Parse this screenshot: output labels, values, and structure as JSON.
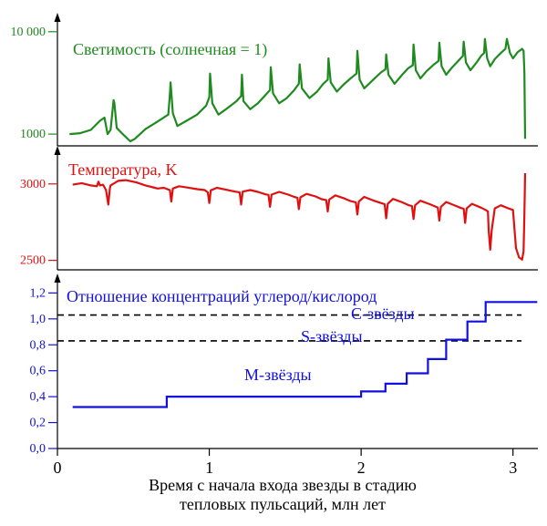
{
  "colors": {
    "luminosity": "#1f8a1f",
    "temperature": "#e01010",
    "ratio": "#1010e0",
    "axis": "#000000"
  },
  "chart_data": [
    {
      "type": "line",
      "title": "Светимость (солнечная = 1)",
      "yscale": "log",
      "ylim": [
        800,
        13000
      ],
      "yticks": [
        1000,
        10000
      ],
      "ytick_labels": [
        "1000",
        "10 000"
      ],
      "series": [
        {
          "name": "Светимость (солнечная = 1)",
          "points": [
            [
              0.08,
              1000
            ],
            [
              0.15,
              1020
            ],
            [
              0.22,
              1100
            ],
            [
              0.28,
              1350
            ],
            [
              0.31,
              1450
            ],
            [
              0.33,
              1000
            ],
            [
              0.35,
              1100
            ],
            [
              0.37,
              2150
            ],
            [
              0.375,
              2000
            ],
            [
              0.39,
              1150
            ],
            [
              0.43,
              1000
            ],
            [
              0.48,
              850
            ],
            [
              0.51,
              900
            ],
            [
              0.58,
              1120
            ],
            [
              0.65,
              1300
            ],
            [
              0.73,
              1550
            ],
            [
              0.74,
              2400
            ],
            [
              0.745,
              3200
            ],
            [
              0.76,
              1600
            ],
            [
              0.79,
              1200
            ],
            [
              0.85,
              1350
            ],
            [
              0.92,
              1550
            ],
            [
              0.98,
              1900
            ],
            [
              1.0,
              2300
            ],
            [
              1.005,
              3900
            ],
            [
              1.02,
              2000
            ],
            [
              1.06,
              1550
            ],
            [
              1.11,
              1750
            ],
            [
              1.18,
              2100
            ],
            [
              1.21,
              2350
            ],
            [
              1.215,
              3800
            ],
            [
              1.225,
              2100
            ],
            [
              1.27,
              1750
            ],
            [
              1.32,
              2000
            ],
            [
              1.38,
              2500
            ],
            [
              1.4,
              2700
            ],
            [
              1.405,
              4500
            ],
            [
              1.42,
              2500
            ],
            [
              1.46,
              2000
            ],
            [
              1.51,
              2250
            ],
            [
              1.56,
              2700
            ],
            [
              1.59,
              3100
            ],
            [
              1.595,
              4800
            ],
            [
              1.61,
              2800
            ],
            [
              1.66,
              2250
            ],
            [
              1.71,
              2600
            ],
            [
              1.75,
              3100
            ],
            [
              1.78,
              3400
            ],
            [
              1.785,
              5500
            ],
            [
              1.8,
              3200
            ],
            [
              1.84,
              2600
            ],
            [
              1.88,
              3000
            ],
            [
              1.93,
              3500
            ],
            [
              1.97,
              3900
            ],
            [
              1.975,
              6500
            ],
            [
              1.99,
              3400
            ],
            [
              2.02,
              2800
            ],
            [
              2.07,
              3300
            ],
            [
              2.13,
              4000
            ],
            [
              2.16,
              4300
            ],
            [
              2.165,
              6000
            ],
            [
              2.18,
              3800
            ],
            [
              2.22,
              3100
            ],
            [
              2.27,
              3800
            ],
            [
              2.31,
              4400
            ],
            [
              2.34,
              4700
            ],
            [
              2.345,
              7500
            ],
            [
              2.36,
              4200
            ],
            [
              2.39,
              3500
            ],
            [
              2.43,
              4100
            ],
            [
              2.48,
              4800
            ],
            [
              2.51,
              5200
            ],
            [
              2.515,
              7800
            ],
            [
              2.53,
              4600
            ],
            [
              2.56,
              3800
            ],
            [
              2.6,
              4500
            ],
            [
              2.64,
              5200
            ],
            [
              2.67,
              5800
            ],
            [
              2.675,
              8000
            ],
            [
              2.69,
              5000
            ],
            [
              2.72,
              4200
            ],
            [
              2.76,
              5000
            ],
            [
              2.79,
              5800
            ],
            [
              2.81,
              6200
            ],
            [
              2.815,
              8500
            ],
            [
              2.83,
              5500
            ],
            [
              2.85,
              4600
            ],
            [
              2.88,
              5400
            ],
            [
              2.92,
              6200
            ],
            [
              2.95,
              6800
            ],
            [
              2.96,
              8500
            ],
            [
              2.98,
              6200
            ],
            [
              3.0,
              5500
            ],
            [
              3.03,
              6300
            ],
            [
              3.06,
              6800
            ],
            [
              3.07,
              6500
            ],
            [
              3.075,
              4000
            ],
            [
              3.08,
              900
            ]
          ]
        }
      ]
    },
    {
      "type": "line",
      "title": "Температура, K",
      "ylim": [
        2450,
        3100
      ],
      "yticks": [
        2500,
        3000
      ],
      "ytick_labels": [
        "2500",
        "3000"
      ],
      "series": [
        {
          "name": "Температура, K",
          "points": [
            [
              0.1,
              2995
            ],
            [
              0.16,
              3005
            ],
            [
              0.22,
              2990
            ],
            [
              0.26,
              2985
            ],
            [
              0.27,
              3015
            ],
            [
              0.28,
              2990
            ],
            [
              0.3,
              2995
            ],
            [
              0.32,
              2960
            ],
            [
              0.335,
              2865
            ],
            [
              0.345,
              2970
            ],
            [
              0.35,
              2990
            ],
            [
              0.4,
              3020
            ],
            [
              0.45,
              3025
            ],
            [
              0.52,
              3010
            ],
            [
              0.58,
              2990
            ],
            [
              0.63,
              2978
            ],
            [
              0.66,
              2970
            ],
            [
              0.7,
              2975
            ],
            [
              0.74,
              2960
            ],
            [
              0.75,
              2885
            ],
            [
              0.76,
              2970
            ],
            [
              0.8,
              2985
            ],
            [
              0.86,
              2976
            ],
            [
              0.92,
              2966
            ],
            [
              0.97,
              2960
            ],
            [
              0.99,
              2945
            ],
            [
              1.0,
              2875
            ],
            [
              1.01,
              2958
            ],
            [
              1.05,
              2975
            ],
            [
              1.11,
              2962
            ],
            [
              1.17,
              2950
            ],
            [
              1.2,
              2945
            ],
            [
              1.21,
              2865
            ],
            [
              1.22,
              2950
            ],
            [
              1.27,
              2960
            ],
            [
              1.32,
              2948
            ],
            [
              1.37,
              2932
            ],
            [
              1.39,
              2928
            ],
            [
              1.4,
              2850
            ],
            [
              1.41,
              2930
            ],
            [
              1.46,
              2948
            ],
            [
              1.52,
              2930
            ],
            [
              1.56,
              2915
            ],
            [
              1.58,
              2910
            ],
            [
              1.59,
              2835
            ],
            [
              1.6,
              2912
            ],
            [
              1.64,
              2935
            ],
            [
              1.7,
              2918
            ],
            [
              1.74,
              2900
            ],
            [
              1.77,
              2895
            ],
            [
              1.78,
              2820
            ],
            [
              1.79,
              2897
            ],
            [
              1.83,
              2925
            ],
            [
              1.89,
              2905
            ],
            [
              1.93,
              2888
            ],
            [
              1.965,
              2880
            ],
            [
              1.975,
              2800
            ],
            [
              1.985,
              2885
            ],
            [
              2.02,
              2915
            ],
            [
              2.08,
              2892
            ],
            [
              2.13,
              2875
            ],
            [
              2.155,
              2868
            ],
            [
              2.165,
              2775
            ],
            [
              2.175,
              2870
            ],
            [
              2.21,
              2902
            ],
            [
              2.27,
              2880
            ],
            [
              2.31,
              2862
            ],
            [
              2.335,
              2855
            ],
            [
              2.345,
              2770
            ],
            [
              2.355,
              2860
            ],
            [
              2.39,
              2890
            ],
            [
              2.45,
              2868
            ],
            [
              2.49,
              2852
            ],
            [
              2.505,
              2846
            ],
            [
              2.515,
              2760
            ],
            [
              2.525,
              2850
            ],
            [
              2.56,
              2882
            ],
            [
              2.62,
              2858
            ],
            [
              2.66,
              2842
            ],
            [
              2.675,
              2838
            ],
            [
              2.685,
              2745
            ],
            [
              2.695,
              2840
            ],
            [
              2.73,
              2870
            ],
            [
              2.79,
              2845
            ],
            [
              2.82,
              2830
            ],
            [
              2.835,
              2820
            ],
            [
              2.84,
              2700
            ],
            [
              2.85,
              2570
            ],
            [
              2.86,
              2700
            ],
            [
              2.88,
              2840
            ],
            [
              2.92,
              2860
            ],
            [
              2.97,
              2840
            ],
            [
              3.0,
              2830
            ],
            [
              3.01,
              2700
            ],
            [
              3.02,
              2580
            ],
            [
              3.04,
              2520
            ],
            [
              3.06,
              2505
            ],
            [
              3.07,
              2560
            ],
            [
              3.075,
              2800
            ],
            [
              3.08,
              3070
            ]
          ]
        }
      ]
    },
    {
      "type": "line",
      "title": "Отношение концентраций углерод/кислород",
      "xlabel_line1": "Время с начала входа звезды в стадию",
      "xlabel_line2": "тепловых пульсаций, млн лет",
      "xlim": [
        0,
        3.2
      ],
      "xticks": [
        0,
        1,
        2,
        3
      ],
      "xtick_labels": [
        "0",
        "1",
        "2",
        "3"
      ],
      "ylim": [
        0,
        1.28
      ],
      "yticks": [
        0.0,
        0.2,
        0.4,
        0.6,
        0.8,
        1.0,
        1.2
      ],
      "ytick_labels": [
        "0,0",
        "0,2",
        "0,4",
        "0,6",
        "0,8",
        "1,0",
        "1,2"
      ],
      "series": [
        {
          "name": "Отношение концентраций углерод/кислород",
          "type": "step",
          "points": [
            [
              0.1,
              0.32
            ],
            [
              0.72,
              0.32
            ],
            [
              0.72,
              0.4
            ],
            [
              2.0,
              0.4
            ],
            [
              2.0,
              0.44
            ],
            [
              2.16,
              0.44
            ],
            [
              2.16,
              0.5
            ],
            [
              2.3,
              0.5
            ],
            [
              2.3,
              0.58
            ],
            [
              2.44,
              0.58
            ],
            [
              2.44,
              0.69
            ],
            [
              2.56,
              0.69
            ],
            [
              2.56,
              0.84
            ],
            [
              2.7,
              0.84
            ],
            [
              2.7,
              0.98
            ],
            [
              2.82,
              0.98
            ],
            [
              2.82,
              1.13
            ],
            [
              3.16,
              1.13
            ]
          ]
        }
      ],
      "reference_lines": [
        {
          "name": "C-threshold",
          "y": 1.03
        },
        {
          "name": "S-threshold",
          "y": 0.83
        }
      ],
      "annotations": {
        "c_stars": "С-звёзды",
        "s_stars": "S-звёзды",
        "m_stars": "М-звёзды"
      }
    }
  ]
}
